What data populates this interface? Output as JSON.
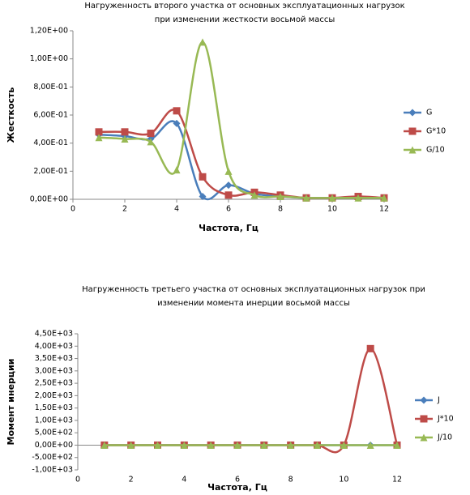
{
  "chart_data": [
    {
      "type": "line",
      "title": "Нагруженность второго участка от основных эксплуатационных нагрузок при изменении жесткости восьмой массы",
      "x_label": "Частота, Гц",
      "y_label": "Жесткость",
      "x": [
        1,
        2,
        3,
        4,
        5,
        6,
        7,
        8,
        9,
        10,
        11,
        12
      ],
      "series": [
        {
          "name": "G",
          "color": "#4a7ebb",
          "marker": "diamond",
          "values": [
            0.46,
            0.45,
            0.43,
            0.54,
            0.02,
            0.1,
            0.04,
            0.02,
            0.01,
            0.01,
            0.01,
            0.01
          ]
        },
        {
          "name": "G*10",
          "color": "#be4b48",
          "marker": "square",
          "values": [
            0.48,
            0.48,
            0.47,
            0.63,
            0.16,
            0.03,
            0.05,
            0.03,
            0.01,
            0.01,
            0.02,
            0.01
          ]
        },
        {
          "name": "G/10",
          "color": "#98b954",
          "marker": "triangle",
          "values": [
            0.44,
            0.43,
            0.41,
            0.21,
            1.12,
            0.2,
            0.03,
            0.02,
            0.01,
            0.01,
            0.01,
            0.01
          ]
        }
      ],
      "xlim": [
        0,
        12
      ],
      "xticks": [
        0,
        2,
        4,
        6,
        8,
        10,
        12
      ],
      "ylim": [
        0,
        1.2
      ],
      "yticks": [
        {
          "value": 0,
          "label": "0,00E+00"
        },
        {
          "value": 0.2,
          "label": "2,00E-01"
        },
        {
          "value": 0.4,
          "label": "4,00E-01"
        },
        {
          "value": 0.6,
          "label": "6,00E-01"
        },
        {
          "value": 0.8,
          "label": "8,00E-01"
        },
        {
          "value": 1.0,
          "label": "1,00E+00"
        },
        {
          "value": 1.2,
          "label": "1,20E+00"
        }
      ],
      "smooth": true,
      "legend": "right"
    },
    {
      "type": "line",
      "title": "Нагруженность третьего участка от основных эксплуатационных нагрузок при изменении момента инерции восьмой массы",
      "x_label": "Частота, Гц",
      "y_label": "Момент инерции",
      "x": [
        1,
        2,
        3,
        4,
        5,
        6,
        7,
        8,
        9,
        10,
        11,
        12
      ],
      "series": [
        {
          "name": "J",
          "color": "#4a7ebb",
          "marker": "diamond",
          "values": [
            0,
            0,
            0,
            0,
            0,
            0,
            0,
            0,
            0,
            0,
            0,
            0
          ]
        },
        {
          "name": "J*10",
          "color": "#be4b48",
          "marker": "square",
          "values": [
            0,
            0,
            0,
            0,
            0,
            0,
            0,
            0,
            0,
            0,
            3900,
            0
          ]
        },
        {
          "name": "J/10",
          "color": "#98b954",
          "marker": "triangle",
          "values": [
            0,
            0,
            0,
            0,
            0,
            0,
            0,
            0,
            0,
            0,
            0,
            0
          ]
        }
      ],
      "xlim": [
        0,
        12
      ],
      "xticks": [
        0,
        2,
        4,
        6,
        8,
        10,
        12
      ],
      "ylim": [
        -1000,
        4500
      ],
      "yticks": [
        {
          "value": -1000,
          "label": "-1,00E+03"
        },
        {
          "value": -500,
          "label": "-5,00E+02"
        },
        {
          "value": 0,
          "label": "0,00E+00"
        },
        {
          "value": 500,
          "label": "5,00E+02"
        },
        {
          "value": 1000,
          "label": "1,00E+03"
        },
        {
          "value": 1500,
          "label": "1,50E+03"
        },
        {
          "value": 2000,
          "label": "2,00E+03"
        },
        {
          "value": 2500,
          "label": "2,50E+03"
        },
        {
          "value": 3000,
          "label": "3,00E+03"
        },
        {
          "value": 3500,
          "label": "3,50E+03"
        },
        {
          "value": 4000,
          "label": "4,00E+03"
        },
        {
          "value": 4500,
          "label": "4,50E+03"
        }
      ],
      "smooth": true,
      "legend": "right"
    }
  ]
}
